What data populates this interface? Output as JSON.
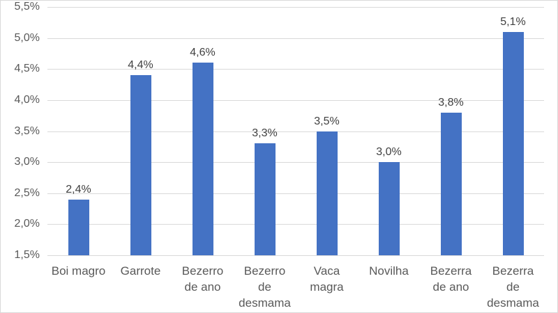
{
  "chart_data": {
    "type": "bar",
    "title": "",
    "xlabel": "",
    "ylabel": "",
    "categories": [
      "Boi magro",
      "Garrote",
      "Bezerro de ano",
      "Bezerro de desmama",
      "Vaca magra",
      "Novilha",
      "Bezerra de ano",
      "Bezerra de desmama"
    ],
    "categories_wrapped": [
      "Boi magro",
      "Garrote",
      "Bezerro\nde ano",
      "Bezerro\nde\ndesmama",
      "Vaca\nmagra",
      "Novilha",
      "Bezerra\nde ano",
      "Bezerra\nde\ndesmama"
    ],
    "values": [
      2.4,
      4.4,
      4.6,
      3.3,
      3.5,
      3.0,
      3.8,
      5.1
    ],
    "data_labels": [
      "2,4%",
      "4,4%",
      "4,6%",
      "3,3%",
      "3,5%",
      "3,0%",
      "3,8%",
      "5,1%"
    ],
    "y_ticks": [
      {
        "v": 5.5,
        "label": "5,5%"
      },
      {
        "v": 5.0,
        "label": "5,0%"
      },
      {
        "v": 4.5,
        "label": "4,5%"
      },
      {
        "v": 4.0,
        "label": "4,0%"
      },
      {
        "v": 3.5,
        "label": "3,5%"
      },
      {
        "v": 3.0,
        "label": "3,0%"
      },
      {
        "v": 2.5,
        "label": "2,5%"
      },
      {
        "v": 2.0,
        "label": "2,0%"
      },
      {
        "v": 1.5,
        "label": "1,5%"
      }
    ],
    "ylim": [
      1.5,
      5.5
    ],
    "grid": true,
    "legend": "none",
    "colors": {
      "bar": "#4472C4",
      "gridline": "#D9D9D9",
      "axis_text": "#595959",
      "data_label_text": "#404040",
      "border": "#D9D9D9",
      "background": "#FFFFFF"
    }
  }
}
